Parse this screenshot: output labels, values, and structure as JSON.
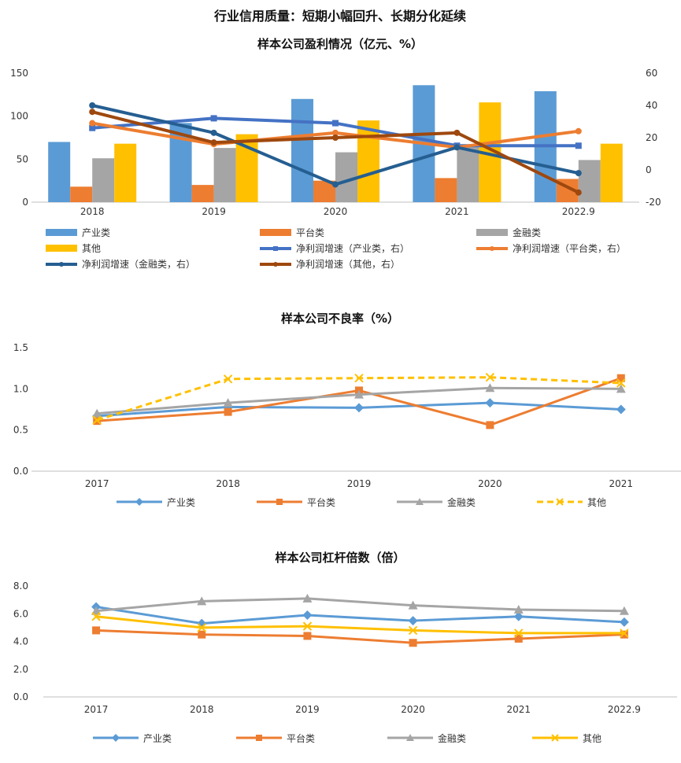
{
  "main_title": "行业信用质量：短期小幅回升、长期分化延续",
  "colors": {
    "industry": "#5B9BD5",
    "platform": "#ED7D31",
    "finance": "#A5A5A5",
    "other": "#FFC000",
    "finance_growth": "#255E91",
    "other_growth": "#9E480E",
    "industry_growth": "#4472C4"
  },
  "chart_data": [
    {
      "type": "bar+line",
      "title": "样本公司盈利情况（亿元、%）",
      "categories": [
        "2018",
        "2019",
        "2020",
        "2021",
        "2022.9"
      ],
      "ylim": [
        0,
        150
      ],
      "yticks": [
        "0",
        "50",
        "100",
        "150"
      ],
      "y2lim": [
        -20,
        60
      ],
      "y2ticks": [
        "-20",
        "0",
        "20",
        "40",
        "60"
      ],
      "bar_series": [
        {
          "name": "产业类",
          "values": [
            70,
            92,
            120,
            136,
            129
          ]
        },
        {
          "name": "平台类",
          "values": [
            18,
            20,
            25,
            28,
            27
          ]
        },
        {
          "name": "金融类",
          "values": [
            51,
            63,
            58,
            64,
            49
          ]
        },
        {
          "name": "其他",
          "values": [
            68,
            79,
            95,
            116,
            68
          ]
        }
      ],
      "line_series": [
        {
          "name": "净利润增速（产业类，右）",
          "values": [
            26,
            32,
            29,
            15,
            15
          ]
        },
        {
          "name": "净利润增速（平台类，右）",
          "values": [
            29,
            16,
            23,
            14,
            24
          ]
        },
        {
          "name": "净利润增速（金融类，右）",
          "values": [
            40,
            23,
            -9,
            14,
            -2
          ]
        },
        {
          "name": "净利润增速（其他，右）",
          "values": [
            36,
            17,
            20,
            23,
            -14
          ]
        }
      ]
    },
    {
      "type": "line",
      "title": "样本公司不良率（%）",
      "categories": [
        "2017",
        "2018",
        "2019",
        "2020",
        "2021"
      ],
      "ylim": [
        0,
        1.5
      ],
      "yticks": [
        "0.0",
        "0.5",
        "1.0",
        "1.5"
      ],
      "series": [
        {
          "name": "产业类",
          "values": [
            0.67,
            0.78,
            0.77,
            0.83,
            0.75
          ]
        },
        {
          "name": "平台类",
          "values": [
            0.61,
            0.72,
            0.98,
            0.56,
            1.13
          ]
        },
        {
          "name": "金融类",
          "values": [
            0.7,
            0.83,
            0.93,
            1.01,
            1.0
          ]
        },
        {
          "name": "其他",
          "values": [
            0.62,
            1.12,
            1.13,
            1.14,
            1.07
          ]
        }
      ]
    },
    {
      "type": "line",
      "title": "样本公司杠杆倍数（倍）",
      "categories": [
        "2017",
        "2018",
        "2019",
        "2020",
        "2021",
        "2022.9"
      ],
      "ylim": [
        0,
        8
      ],
      "yticks": [
        "0.0",
        "2.0",
        "4.0",
        "6.0",
        "8.0"
      ],
      "series": [
        {
          "name": "产业类",
          "values": [
            6.5,
            5.3,
            5.9,
            5.5,
            5.8,
            5.4
          ]
        },
        {
          "name": "平台类",
          "values": [
            4.8,
            4.5,
            4.4,
            3.9,
            4.2,
            4.5
          ]
        },
        {
          "name": "金融类",
          "values": [
            6.2,
            6.9,
            7.1,
            6.6,
            6.3,
            6.2
          ]
        },
        {
          "name": "其他",
          "values": [
            5.8,
            5.0,
            5.1,
            4.8,
            4.6,
            4.6
          ]
        }
      ]
    }
  ]
}
